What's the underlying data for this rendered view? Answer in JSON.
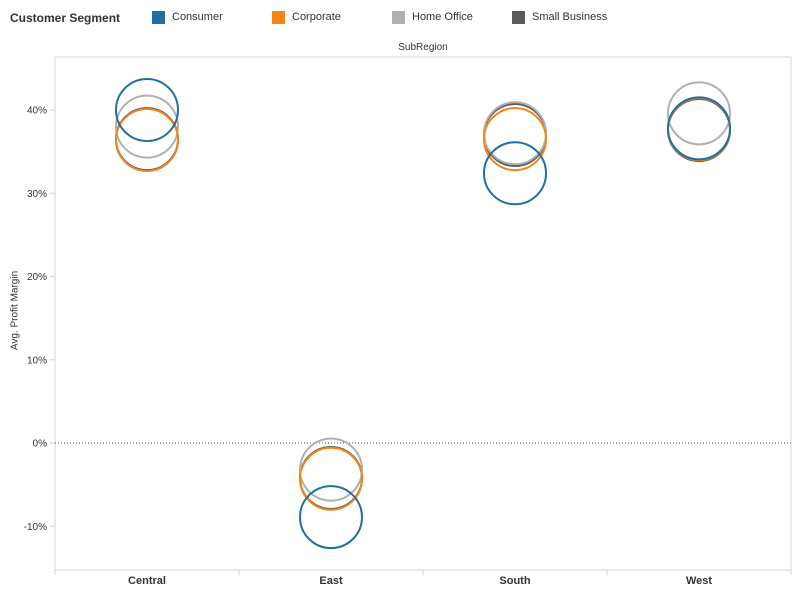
{
  "legend": {
    "title": "Customer Segment",
    "items": [
      {
        "label": "Consumer",
        "color": "#1f6fa0"
      },
      {
        "label": "Corporate",
        "color": "#f58518"
      },
      {
        "label": "Home Office",
        "color": "#b0b0b0"
      },
      {
        "label": "Small Business",
        "color": "#5a5a5a"
      }
    ]
  },
  "column_header": "SubRegion",
  "chart_data": {
    "type": "scatter",
    "title": "",
    "xlabel": "SubRegion",
    "ylabel": "Avg. Profit Margin",
    "categories": [
      "Central",
      "East",
      "South",
      "West"
    ],
    "yticks": [
      "40%",
      "30%",
      "20%",
      "10%",
      "0%",
      "-10%"
    ],
    "ytick_values": [
      40,
      30,
      20,
      10,
      0,
      -10
    ],
    "ylim": [
      -15,
      44
    ],
    "reference_line": {
      "value": 0,
      "style": "dotted"
    },
    "marker": "open-circle",
    "legend_position": "top",
    "series": [
      {
        "name": "Small Business",
        "color": "#5a5a5a",
        "values": [
          36.5,
          -4.2,
          37.0,
          37.6
        ]
      },
      {
        "name": "Home Office",
        "color": "#b0b0b0",
        "values": [
          38.0,
          -3.2,
          37.2,
          39.6
        ]
      },
      {
        "name": "Corporate",
        "color": "#f58518",
        "values": [
          36.4,
          -4.3,
          36.5,
          37.7
        ]
      },
      {
        "name": "Consumer",
        "color": "#1f6fa0",
        "values": [
          40.0,
          -8.9,
          32.4,
          37.8
        ]
      }
    ]
  }
}
